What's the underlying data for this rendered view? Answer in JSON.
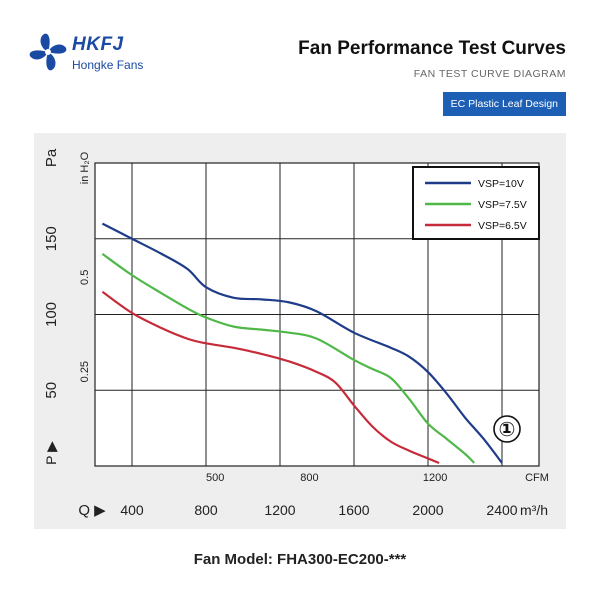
{
  "brand": {
    "name": "HKFJ",
    "tagline": "Hongke Fans"
  },
  "header": {
    "title": "Fan Performance Test Curves",
    "subtitle": "FAN TEST CURVE DIAGRAM",
    "badge": "EC Plastic Leaf Design"
  },
  "footer": {
    "model": "Fan Model: FHA300-EC200-***"
  },
  "marker": {
    "label": "①"
  },
  "colors": {
    "vsp10": "#1f3c88",
    "vsp75": "#4fb848",
    "vsp65": "#c62b3a",
    "brand": "#1b4aa3",
    "badge": "#1c5fb5"
  },
  "chart_data": {
    "type": "line",
    "x_unit_top": "CFM",
    "x_unit_bottom": "m³/h",
    "x_prefix": "Q ▶",
    "y_unit_left": "Pa",
    "y_unit_inner": "in H₂O",
    "y_prefix": "P ▶",
    "cfm_ticks": [
      "500",
      "800",
      "1200"
    ],
    "m3h_ticks": [
      "400",
      "800",
      "1200",
      "1600",
      "2000",
      "2400"
    ],
    "pa_ticks": [
      "50",
      "100",
      "150"
    ],
    "inh2o_ticks": [
      "0.25",
      "0.5"
    ],
    "xlim_m3h": [
      200,
      2600
    ],
    "ylim_pa": [
      0,
      200
    ],
    "grid": true,
    "legend_position": "top-right",
    "series": [
      {
        "name": "VSP=10V",
        "color": "#1f3c88",
        "x": [
          240,
          400,
          560,
          700,
          800,
          950,
          1100,
          1250,
          1400,
          1600,
          1800,
          1900,
          2000,
          2100,
          2200,
          2300,
          2400
        ],
        "y": [
          160,
          150,
          140,
          130,
          118,
          111,
          110,
          108,
          102,
          88,
          78,
          72,
          62,
          48,
          32,
          18,
          2
        ]
      },
      {
        "name": "VSP=7.5V",
        "color": "#4fb848",
        "x": [
          240,
          400,
          560,
          700,
          800,
          950,
          1100,
          1250,
          1400,
          1600,
          1700,
          1800,
          1900,
          2000,
          2100,
          2200,
          2250
        ],
        "y": [
          140,
          126,
          114,
          104,
          98,
          92,
          90,
          88,
          84,
          70,
          64,
          58,
          44,
          28,
          18,
          8,
          2
        ]
      },
      {
        "name": "VSP=6.5V",
        "color": "#c62b3a",
        "x": [
          240,
          400,
          560,
          700,
          800,
          950,
          1100,
          1250,
          1400,
          1500,
          1600,
          1700,
          1800,
          1900,
          2000,
          2060
        ],
        "y": [
          115,
          101,
          91,
          84,
          81,
          78,
          74,
          69,
          62,
          55,
          40,
          26,
          16,
          10,
          5,
          2
        ]
      }
    ]
  }
}
